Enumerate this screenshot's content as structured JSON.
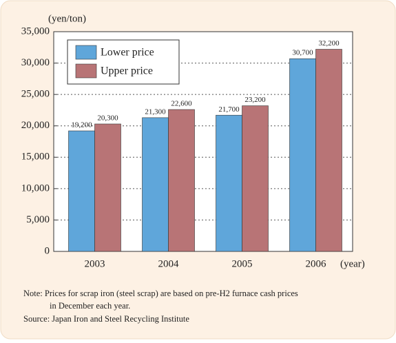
{
  "chart_data": {
    "type": "bar",
    "y_axis_label": "(yen/ton)",
    "x_axis_label": "(year)",
    "categories": [
      "2003",
      "2004",
      "2005",
      "2006"
    ],
    "series": [
      {
        "name": "Lower price",
        "color": "#5fa6da",
        "values": [
          19200,
          21300,
          21700,
          30700
        ],
        "value_labels": [
          "19,200",
          "21,300",
          "21,700",
          "30,700"
        ]
      },
      {
        "name": "Upper price",
        "color": "#b87476",
        "values": [
          20300,
          22600,
          23200,
          32200
        ],
        "value_labels": [
          "20,300",
          "22,600",
          "23,200",
          "32,200"
        ]
      }
    ],
    "ylim": [
      0,
      35000
    ],
    "yticks": [
      0,
      {
        "value": 5000,
        "label": "5,000"
      },
      {
        "value": 10000,
        "label": "10,000"
      },
      {
        "value": 15000,
        "label": "15,000"
      },
      {
        "value": 20000,
        "label": "20,000"
      },
      {
        "value": 25000,
        "label": "25,000"
      },
      {
        "value": 30000,
        "label": "30,000"
      },
      {
        "value": 35000,
        "label": "35,000"
      }
    ],
    "grid": true,
    "legend": "upper left",
    "note": [
      "Note: Prices for scrap iron (steel scrap) are based on pre-H2 furnace cash prices",
      "in December each year."
    ],
    "source": "Source: Japan Iron and Steel Recycling Institute"
  }
}
